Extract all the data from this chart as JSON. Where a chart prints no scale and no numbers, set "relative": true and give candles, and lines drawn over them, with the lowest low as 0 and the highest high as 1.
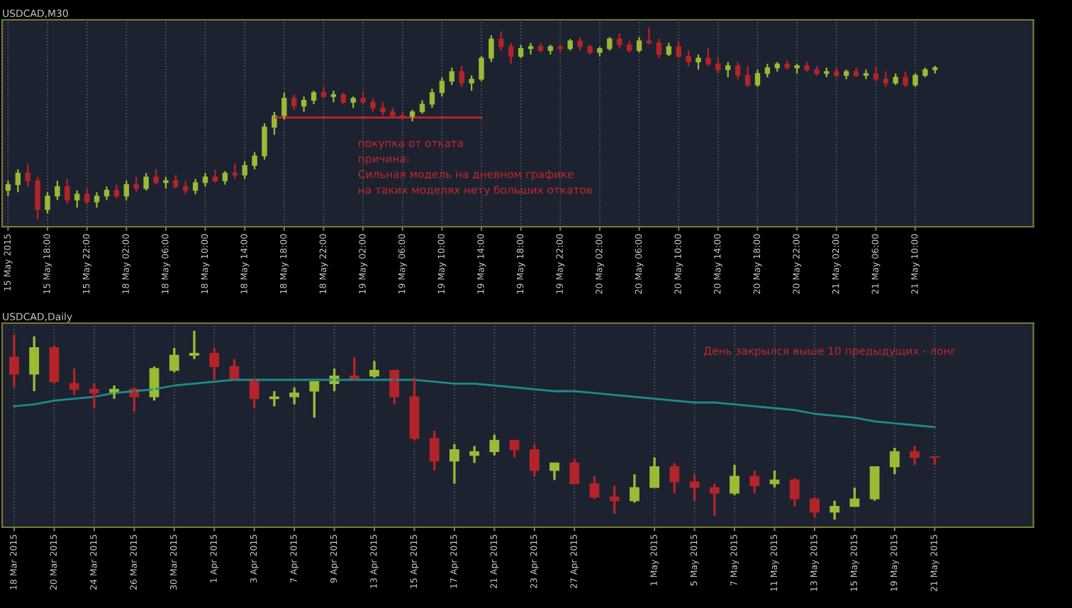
{
  "chart_data": [
    {
      "type": "candlestick",
      "title": "USDCAD,M30",
      "relative": true,
      "grid": "x",
      "categories": [
        "15 May 2015",
        null,
        null,
        null,
        "15 May 18:00",
        null,
        null,
        null,
        "15 May 22:00",
        null,
        null,
        null,
        "18 May 02:00",
        null,
        null,
        null,
        "18 May 06:00",
        null,
        null,
        null,
        "18 May 10:00",
        null,
        null,
        null,
        "18 May 14:00",
        null,
        null,
        null,
        "18 May 18:00",
        null,
        null,
        null,
        "18 May 22:00",
        null,
        null,
        null,
        "19 May 02:00",
        null,
        null,
        null,
        "19 May 06:00",
        null,
        null,
        null,
        "19 May 10:00",
        null,
        null,
        null,
        "19 May 14:00",
        null,
        null,
        null,
        "19 May 18:00",
        null,
        null,
        null,
        "19 May 22:00",
        null,
        null,
        null,
        "20 May 02:00",
        null,
        null,
        null,
        "20 May 06:00",
        null,
        null,
        null,
        "20 May 10:00",
        null,
        null,
        null,
        "20 May 14:00",
        null,
        null,
        null,
        "20 May 18:00",
        null,
        null,
        null,
        "20 May 22:00",
        null,
        null,
        null,
        "21 May 02:00",
        null,
        null,
        null,
        "21 May 06:00",
        null,
        null,
        null,
        "21 May 10:00",
        null,
        null
      ],
      "ohlc": [
        [
          0.15,
          0.2,
          0.12,
          0.18
        ],
        [
          0.18,
          0.26,
          0.14,
          0.24
        ],
        [
          0.24,
          0.29,
          0.17,
          0.2
        ],
        [
          0.2,
          0.22,
          0.0,
          0.05
        ],
        [
          0.05,
          0.14,
          0.03,
          0.12
        ],
        [
          0.12,
          0.2,
          0.1,
          0.17
        ],
        [
          0.17,
          0.21,
          0.08,
          0.1
        ],
        [
          0.1,
          0.15,
          0.06,
          0.13
        ],
        [
          0.13,
          0.16,
          0.08,
          0.09
        ],
        [
          0.09,
          0.14,
          0.06,
          0.12
        ],
        [
          0.12,
          0.17,
          0.1,
          0.15
        ],
        [
          0.15,
          0.18,
          0.11,
          0.12
        ],
        [
          0.12,
          0.2,
          0.1,
          0.18
        ],
        [
          0.18,
          0.22,
          0.14,
          0.16
        ],
        [
          0.16,
          0.24,
          0.15,
          0.22
        ],
        [
          0.22,
          0.26,
          0.18,
          0.19
        ],
        [
          0.19,
          0.22,
          0.16,
          0.2
        ],
        [
          0.2,
          0.23,
          0.16,
          0.17
        ],
        [
          0.17,
          0.2,
          0.13,
          0.15
        ],
        [
          0.15,
          0.21,
          0.13,
          0.19
        ],
        [
          0.19,
          0.24,
          0.17,
          0.22
        ],
        [
          0.22,
          0.26,
          0.19,
          0.2
        ],
        [
          0.2,
          0.25,
          0.18,
          0.24
        ],
        [
          0.24,
          0.29,
          0.21,
          0.23
        ],
        [
          0.23,
          0.3,
          0.21,
          0.28
        ],
        [
          0.28,
          0.35,
          0.26,
          0.33
        ],
        [
          0.33,
          0.5,
          0.31,
          0.48
        ],
        [
          0.48,
          0.56,
          0.44,
          0.54
        ],
        [
          0.54,
          0.66,
          0.52,
          0.63
        ],
        [
          0.63,
          0.65,
          0.57,
          0.59
        ],
        [
          0.59,
          0.64,
          0.56,
          0.62
        ],
        [
          0.62,
          0.67,
          0.6,
          0.66
        ],
        [
          0.66,
          0.69,
          0.63,
          0.64
        ],
        [
          0.64,
          0.67,
          0.61,
          0.65
        ],
        [
          0.65,
          0.66,
          0.6,
          0.61
        ],
        [
          0.61,
          0.64,
          0.58,
          0.63
        ],
        [
          0.63,
          0.66,
          0.6,
          0.61
        ],
        [
          0.61,
          0.63,
          0.56,
          0.58
        ],
        [
          0.58,
          0.61,
          0.54,
          0.56
        ],
        [
          0.56,
          0.58,
          0.53,
          0.54
        ],
        [
          0.54,
          0.56,
          0.52,
          0.53
        ],
        [
          0.53,
          0.57,
          0.51,
          0.56
        ],
        [
          0.56,
          0.62,
          0.55,
          0.6
        ],
        [
          0.6,
          0.68,
          0.58,
          0.66
        ],
        [
          0.66,
          0.74,
          0.64,
          0.72
        ],
        [
          0.72,
          0.79,
          0.7,
          0.77
        ],
        [
          0.77,
          0.8,
          0.69,
          0.71
        ],
        [
          0.71,
          0.75,
          0.67,
          0.73
        ],
        [
          0.73,
          0.85,
          0.72,
          0.84
        ],
        [
          0.84,
          0.96,
          0.82,
          0.94
        ],
        [
          0.94,
          0.98,
          0.88,
          0.9
        ],
        [
          0.9,
          0.92,
          0.81,
          0.85
        ],
        [
          0.85,
          0.91,
          0.84,
          0.89
        ],
        [
          0.89,
          0.92,
          0.86,
          0.9
        ],
        [
          0.9,
          0.92,
          0.87,
          0.88
        ],
        [
          0.88,
          0.91,
          0.86,
          0.9
        ],
        [
          0.9,
          0.91,
          0.87,
          0.89
        ],
        [
          0.89,
          0.94,
          0.88,
          0.93
        ],
        [
          0.93,
          0.95,
          0.88,
          0.9
        ],
        [
          0.9,
          0.91,
          0.86,
          0.87
        ],
        [
          0.87,
          0.9,
          0.85,
          0.89
        ],
        [
          0.89,
          0.95,
          0.88,
          0.94
        ],
        [
          0.94,
          0.97,
          0.89,
          0.91
        ],
        [
          0.91,
          0.93,
          0.87,
          0.88
        ],
        [
          0.88,
          0.95,
          0.87,
          0.93
        ],
        [
          0.93,
          1.0,
          0.91,
          0.92
        ],
        [
          0.92,
          0.94,
          0.84,
          0.86
        ],
        [
          0.86,
          0.92,
          0.85,
          0.9
        ],
        [
          0.9,
          0.93,
          0.84,
          0.85
        ],
        [
          0.85,
          0.88,
          0.8,
          0.82
        ],
        [
          0.82,
          0.86,
          0.78,
          0.84
        ],
        [
          0.84,
          0.89,
          0.8,
          0.81
        ],
        [
          0.81,
          0.84,
          0.76,
          0.78
        ],
        [
          0.78,
          0.82,
          0.74,
          0.8
        ],
        [
          0.8,
          0.82,
          0.73,
          0.75
        ],
        [
          0.75,
          0.8,
          0.69,
          0.7
        ],
        [
          0.7,
          0.78,
          0.69,
          0.76
        ],
        [
          0.76,
          0.81,
          0.74,
          0.79
        ],
        [
          0.79,
          0.82,
          0.77,
          0.81
        ],
        [
          0.81,
          0.83,
          0.78,
          0.79
        ],
        [
          0.79,
          0.81,
          0.76,
          0.8
        ],
        [
          0.8,
          0.82,
          0.77,
          0.78
        ],
        [
          0.78,
          0.8,
          0.75,
          0.76
        ],
        [
          0.76,
          0.79,
          0.74,
          0.77
        ],
        [
          0.77,
          0.79,
          0.74,
          0.75
        ],
        [
          0.75,
          0.78,
          0.73,
          0.77
        ],
        [
          0.77,
          0.79,
          0.74,
          0.75
        ],
        [
          0.75,
          0.78,
          0.73,
          0.76
        ],
        [
          0.76,
          0.8,
          0.72,
          0.73
        ],
        [
          0.73,
          0.77,
          0.69,
          0.71
        ],
        [
          0.71,
          0.76,
          0.7,
          0.74
        ],
        [
          0.74,
          0.77,
          0.69,
          0.7
        ],
        [
          0.7,
          0.76,
          0.69,
          0.75
        ],
        [
          0.75,
          0.79,
          0.74,
          0.78
        ],
        [
          0.78,
          0.8,
          0.76,
          0.79
        ]
      ],
      "colors": [
        "#9bbb35",
        "#9bbb35",
        "#b3242a",
        "#b3242a",
        "#9bbb35",
        "#9bbb35",
        "#b3242a",
        "#9bbb35",
        "#b3242a",
        "#9bbb35",
        "#9bbb35",
        "#b3242a",
        "#9bbb35",
        "#b3242a",
        "#9bbb35",
        "#b3242a",
        "#9bbb35",
        "#b3242a",
        "#b3242a",
        "#9bbb35",
        "#9bbb35",
        "#b3242a",
        "#9bbb35",
        "#b3242a",
        "#9bbb35",
        "#9bbb35",
        "#9bbb35",
        "#9bbb35",
        "#9bbb35",
        "#b3242a",
        "#9bbb35",
        "#9bbb35",
        "#b3242a",
        "#9bbb35",
        "#b3242a",
        "#9bbb35",
        "#b3242a",
        "#b3242a",
        "#b3242a",
        "#b3242a",
        "#b3242a",
        "#9bbb35",
        "#9bbb35",
        "#9bbb35",
        "#9bbb35",
        "#9bbb35",
        "#b3242a",
        "#9bbb35",
        "#9bbb35",
        "#9bbb35",
        "#b3242a",
        "#b3242a",
        "#9bbb35",
        "#9bbb35",
        "#b3242a",
        "#9bbb35",
        "#b3242a",
        "#9bbb35",
        "#b3242a",
        "#b3242a",
        "#9bbb35",
        "#9bbb35",
        "#b3242a",
        "#b3242a",
        "#9bbb35",
        "#b3242a",
        "#b3242a",
        "#9bbb35",
        "#b3242a",
        "#b3242a",
        "#9bbb35",
        "#b3242a",
        "#b3242a",
        "#9bbb35",
        "#b3242a",
        "#b3242a",
        "#9bbb35",
        "#9bbb35",
        "#9bbb35",
        "#b3242a",
        "#9bbb35",
        "#b3242a",
        "#b3242a",
        "#9bbb35",
        "#b3242a",
        "#9bbb35",
        "#b3242a",
        "#9bbb35",
        "#b3242a",
        "#b3242a",
        "#9bbb35",
        "#b3242a",
        "#9bbb35",
        "#9bbb35",
        "#9bbb35"
      ],
      "series": [
        {
          "type": "line",
          "color": "#c0282d",
          "values": [
            null,
            null,
            null,
            null,
            null,
            null,
            null,
            null,
            null,
            null,
            null,
            null,
            null,
            null,
            null,
            null,
            null,
            null,
            null,
            null,
            null,
            null,
            null,
            null,
            null,
            null,
            null,
            0.53,
            0.53,
            0.53,
            0.53,
            0.53,
            0.53,
            0.53,
            0.53,
            0.53,
            0.53,
            0.53,
            0.53,
            0.53,
            0.53,
            0.53,
            0.53,
            0.53,
            0.53,
            0.53,
            0.53,
            0.53,
            0.53,
            null,
            null,
            null,
            null,
            null,
            null,
            null,
            null,
            null,
            null,
            null,
            null,
            null,
            null,
            null,
            null,
            null,
            null,
            null,
            null,
            null,
            null,
            null,
            null,
            null,
            null,
            null,
            null,
            null,
            null,
            null,
            null,
            null,
            null,
            null,
            null,
            null,
            null,
            null,
            null,
            null,
            null,
            null,
            null,
            null,
            null
          ]
        }
      ],
      "annotations": [
        "покупка от отката",
        "причина:",
        "Сильная модель на дневном графике",
        "на таких моделях нету больших откатов"
      ]
    },
    {
      "type": "candlestick",
      "title": "USDCAD,Daily",
      "relative": true,
      "grid": "x",
      "categories": [
        "18 Mar 2015",
        null,
        "20 Mar 2015",
        null,
        "24 Mar 2015",
        null,
        "26 Mar 2015",
        null,
        "30 Mar 2015",
        null,
        "1 Apr 2015",
        null,
        "3 Apr 2015",
        null,
        "7 Apr 2015",
        null,
        "9 Apr 2015",
        null,
        "13 Apr 2015",
        null,
        "15 Apr 2015",
        null,
        "17 Apr 2015",
        null,
        "21 Apr 2015",
        null,
        "23 Apr 2015",
        null,
        "27 Apr 2015",
        null,
        null,
        null,
        "1 May 2015",
        null,
        "5 May 2015",
        null,
        "7 May 2015",
        null,
        "11 May 2015",
        null,
        "13 May 2015",
        null,
        "15 May 2015",
        null,
        "19 May 2015",
        null,
        "21 May 2015"
      ],
      "ohlc": [
        [
          0.86,
          0.98,
          0.7,
          0.77
        ],
        [
          0.77,
          0.97,
          0.68,
          0.91
        ],
        [
          0.91,
          0.92,
          0.72,
          0.73
        ],
        [
          0.72,
          0.8,
          0.66,
          0.69
        ],
        [
          0.69,
          0.72,
          0.59,
          0.67
        ],
        [
          0.67,
          0.71,
          0.64,
          0.69
        ],
        [
          0.69,
          0.7,
          0.57,
          0.65
        ],
        [
          0.65,
          0.81,
          0.63,
          0.8
        ],
        [
          0.79,
          0.91,
          0.78,
          0.87
        ],
        [
          0.87,
          1.0,
          0.85,
          0.88
        ],
        [
          0.88,
          0.91,
          0.74,
          0.81
        ],
        [
          0.81,
          0.85,
          0.74,
          0.74
        ],
        [
          0.74,
          0.75,
          0.59,
          0.64
        ],
        [
          0.64,
          0.68,
          0.6,
          0.65
        ],
        [
          0.65,
          0.7,
          0.61,
          0.67
        ],
        [
          0.68,
          0.73,
          0.54,
          0.73
        ],
        [
          0.72,
          0.8,
          0.68,
          0.76
        ],
        [
          0.76,
          0.86,
          0.74,
          0.74
        ],
        [
          0.76,
          0.84,
          0.75,
          0.79
        ],
        [
          0.79,
          0.79,
          0.61,
          0.65
        ],
        [
          0.65,
          0.75,
          0.42,
          0.43
        ],
        [
          0.43,
          0.47,
          0.26,
          0.31
        ],
        [
          0.31,
          0.4,
          0.19,
          0.37
        ],
        [
          0.34,
          0.39,
          0.3,
          0.36
        ],
        [
          0.36,
          0.45,
          0.34,
          0.42
        ],
        [
          0.42,
          0.42,
          0.33,
          0.37
        ],
        [
          0.37,
          0.4,
          0.23,
          0.26
        ],
        [
          0.26,
          0.3,
          0.21,
          0.3
        ],
        [
          0.3,
          0.32,
          0.19,
          0.19
        ],
        [
          0.19,
          0.23,
          0.11,
          0.12
        ],
        [
          0.12,
          0.18,
          0.03,
          0.1
        ],
        [
          0.1,
          0.24,
          0.09,
          0.17
        ],
        [
          0.17,
          0.33,
          0.17,
          0.28
        ],
        [
          0.28,
          0.3,
          0.14,
          0.2
        ],
        [
          0.2,
          0.24,
          0.1,
          0.17
        ],
        [
          0.17,
          0.19,
          0.02,
          0.14
        ],
        [
          0.14,
          0.29,
          0.13,
          0.23
        ],
        [
          0.23,
          0.26,
          0.14,
          0.18
        ],
        [
          0.19,
          0.26,
          0.17,
          0.21
        ],
        [
          0.21,
          0.22,
          0.07,
          0.11
        ],
        [
          0.11,
          0.12,
          0.01,
          0.04
        ],
        [
          0.04,
          0.1,
          0.0,
          0.07
        ],
        [
          0.07,
          0.17,
          0.07,
          0.11
        ],
        [
          0.11,
          0.28,
          0.1,
          0.28
        ],
        [
          0.28,
          0.38,
          0.24,
          0.36
        ],
        [
          0.36,
          0.39,
          0.29,
          0.33
        ],
        [
          0.33,
          0.33,
          0.29,
          0.33
        ]
      ],
      "colors": [
        "#b3242a",
        "#9bbb35",
        "#b3242a",
        "#b3242a",
        "#b3242a",
        "#9bbb35",
        "#b3242a",
        "#9bbb35",
        "#9bbb35",
        "#9bbb35",
        "#b3242a",
        "#b3242a",
        "#b3242a",
        "#9bbb35",
        "#9bbb35",
        "#9bbb35",
        "#9bbb35",
        "#b3242a",
        "#9bbb35",
        "#b3242a",
        "#b3242a",
        "#b3242a",
        "#9bbb35",
        "#9bbb35",
        "#9bbb35",
        "#b3242a",
        "#b3242a",
        "#9bbb35",
        "#b3242a",
        "#b3242a",
        "#b3242a",
        "#9bbb35",
        "#9bbb35",
        "#b3242a",
        "#b3242a",
        "#b3242a",
        "#9bbb35",
        "#b3242a",
        "#9bbb35",
        "#b3242a",
        "#b3242a",
        "#9bbb35",
        "#9bbb35",
        "#9bbb35",
        "#9bbb35",
        "#b3242a",
        "#b3242a"
      ],
      "series": [
        {
          "type": "line",
          "color": "#1f8a8a",
          "values": [
            0.6,
            0.61,
            0.63,
            0.64,
            0.65,
            0.67,
            0.68,
            0.69,
            0.71,
            0.72,
            0.73,
            0.74,
            0.74,
            0.74,
            0.74,
            0.74,
            0.74,
            0.74,
            0.74,
            0.74,
            0.74,
            0.73,
            0.72,
            0.72,
            0.71,
            0.7,
            0.69,
            0.68,
            0.68,
            0.67,
            0.66,
            0.65,
            0.64,
            0.63,
            0.62,
            0.62,
            0.61,
            0.6,
            0.59,
            0.58,
            0.56,
            0.55,
            0.54,
            0.52,
            0.51,
            0.5,
            0.49
          ]
        }
      ],
      "annotations": [
        "День закрылся выше 10 предыдущих - лонг"
      ]
    }
  ]
}
